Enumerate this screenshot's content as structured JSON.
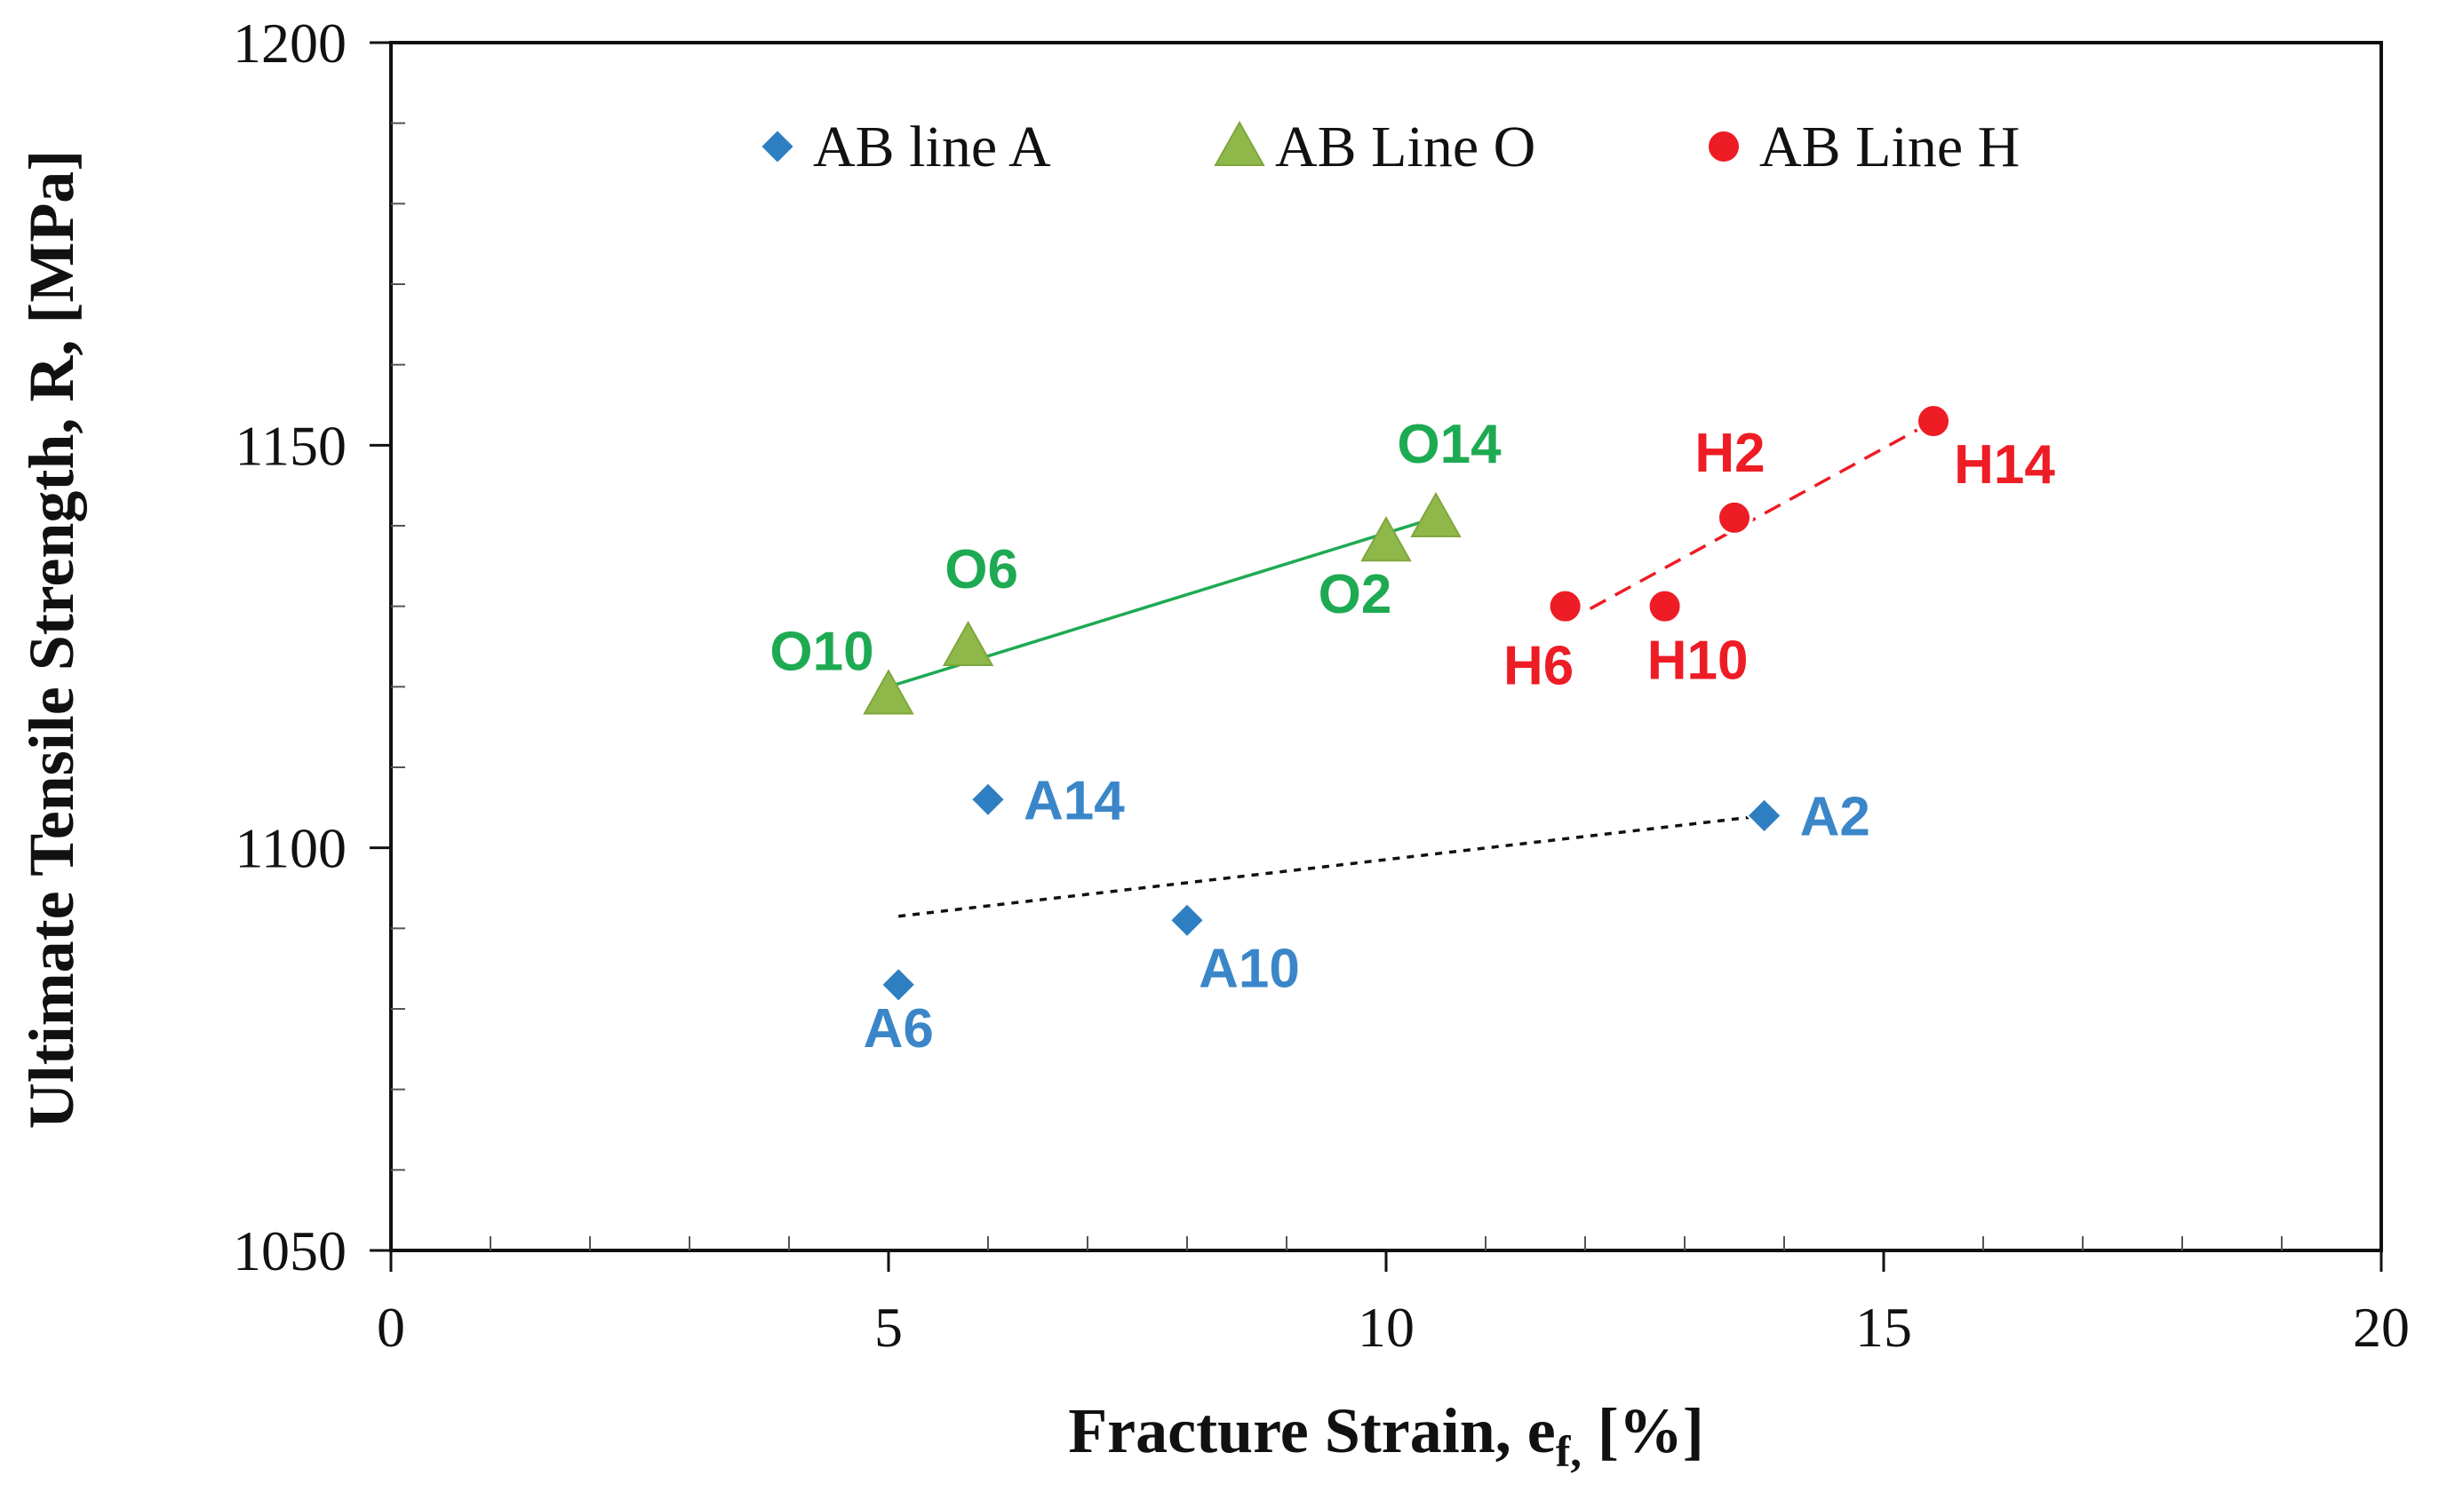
{
  "chart_data": {
    "type": "scatter",
    "title": "",
    "xlabel": "Fracture  Strain, e",
    "xlabel_sub": "f,",
    "xlabel_unit": " [%]",
    "ylabel": "Ultimate Tensile Strength, R, [MPa]",
    "xlim": [
      0,
      20
    ],
    "ylim": [
      1050,
      1200
    ],
    "x_ticks": [
      0,
      5,
      10,
      15,
      20
    ],
    "y_ticks": [
      1050,
      1100,
      1150,
      1200
    ],
    "x_tick_labels": [
      "0",
      "5",
      "10",
      "15",
      "20"
    ],
    "y_tick_labels": [
      "1050",
      "1100",
      "1150",
      "1200"
    ],
    "x_minor_step": 1,
    "y_minor_step": 10,
    "grid": false,
    "legend_position": "top",
    "series": [
      {
        "name": "AB line A",
        "marker": "diamond",
        "color": "#2e7fc1",
        "label_color": "#3a86c8",
        "points": [
          {
            "label": "A6",
            "x": 5.1,
            "y": 1083
          },
          {
            "label": "A10",
            "x": 8.0,
            "y": 1091
          },
          {
            "label": "A14",
            "x": 6.0,
            "y": 1106
          },
          {
            "label": "A2",
            "x": 13.8,
            "y": 1104
          }
        ],
        "trendline": {
          "style": "dotted",
          "color": "#111111",
          "from": {
            "x": 5.1,
            "y": 1091.5
          },
          "to": {
            "x": 13.8,
            "y": 1104
          }
        }
      },
      {
        "name": "AB Line O",
        "marker": "triangle",
        "color": "#8fb84a",
        "label_color": "#1eaa52",
        "points": [
          {
            "label": "O10",
            "x": 5.0,
            "y": 1119
          },
          {
            "label": "O6",
            "x": 5.8,
            "y": 1125
          },
          {
            "label": "O2",
            "x": 10.0,
            "y": 1138
          },
          {
            "label": "O14",
            "x": 10.5,
            "y": 1141
          }
        ],
        "trendline": {
          "style": "solid",
          "color": "#1eaa52",
          "from": {
            "x": 5.0,
            "y": 1120
          },
          "to": {
            "x": 10.5,
            "y": 1141
          }
        }
      },
      {
        "name": "AB Line H",
        "marker": "circle",
        "color": "#ee1c24",
        "label_color": "#ee1c24",
        "points": [
          {
            "label": "H6",
            "x": 11.8,
            "y": 1130
          },
          {
            "label": "H10",
            "x": 12.8,
            "y": 1130
          },
          {
            "label": "H2",
            "x": 13.5,
            "y": 1141
          },
          {
            "label": "H14",
            "x": 15.5,
            "y": 1153
          }
        ],
        "trendline": {
          "style": "dashed",
          "color": "#ee1c24",
          "from": {
            "x": 11.8,
            "y": 1128
          },
          "to": {
            "x": 15.5,
            "y": 1153
          }
        }
      }
    ]
  }
}
